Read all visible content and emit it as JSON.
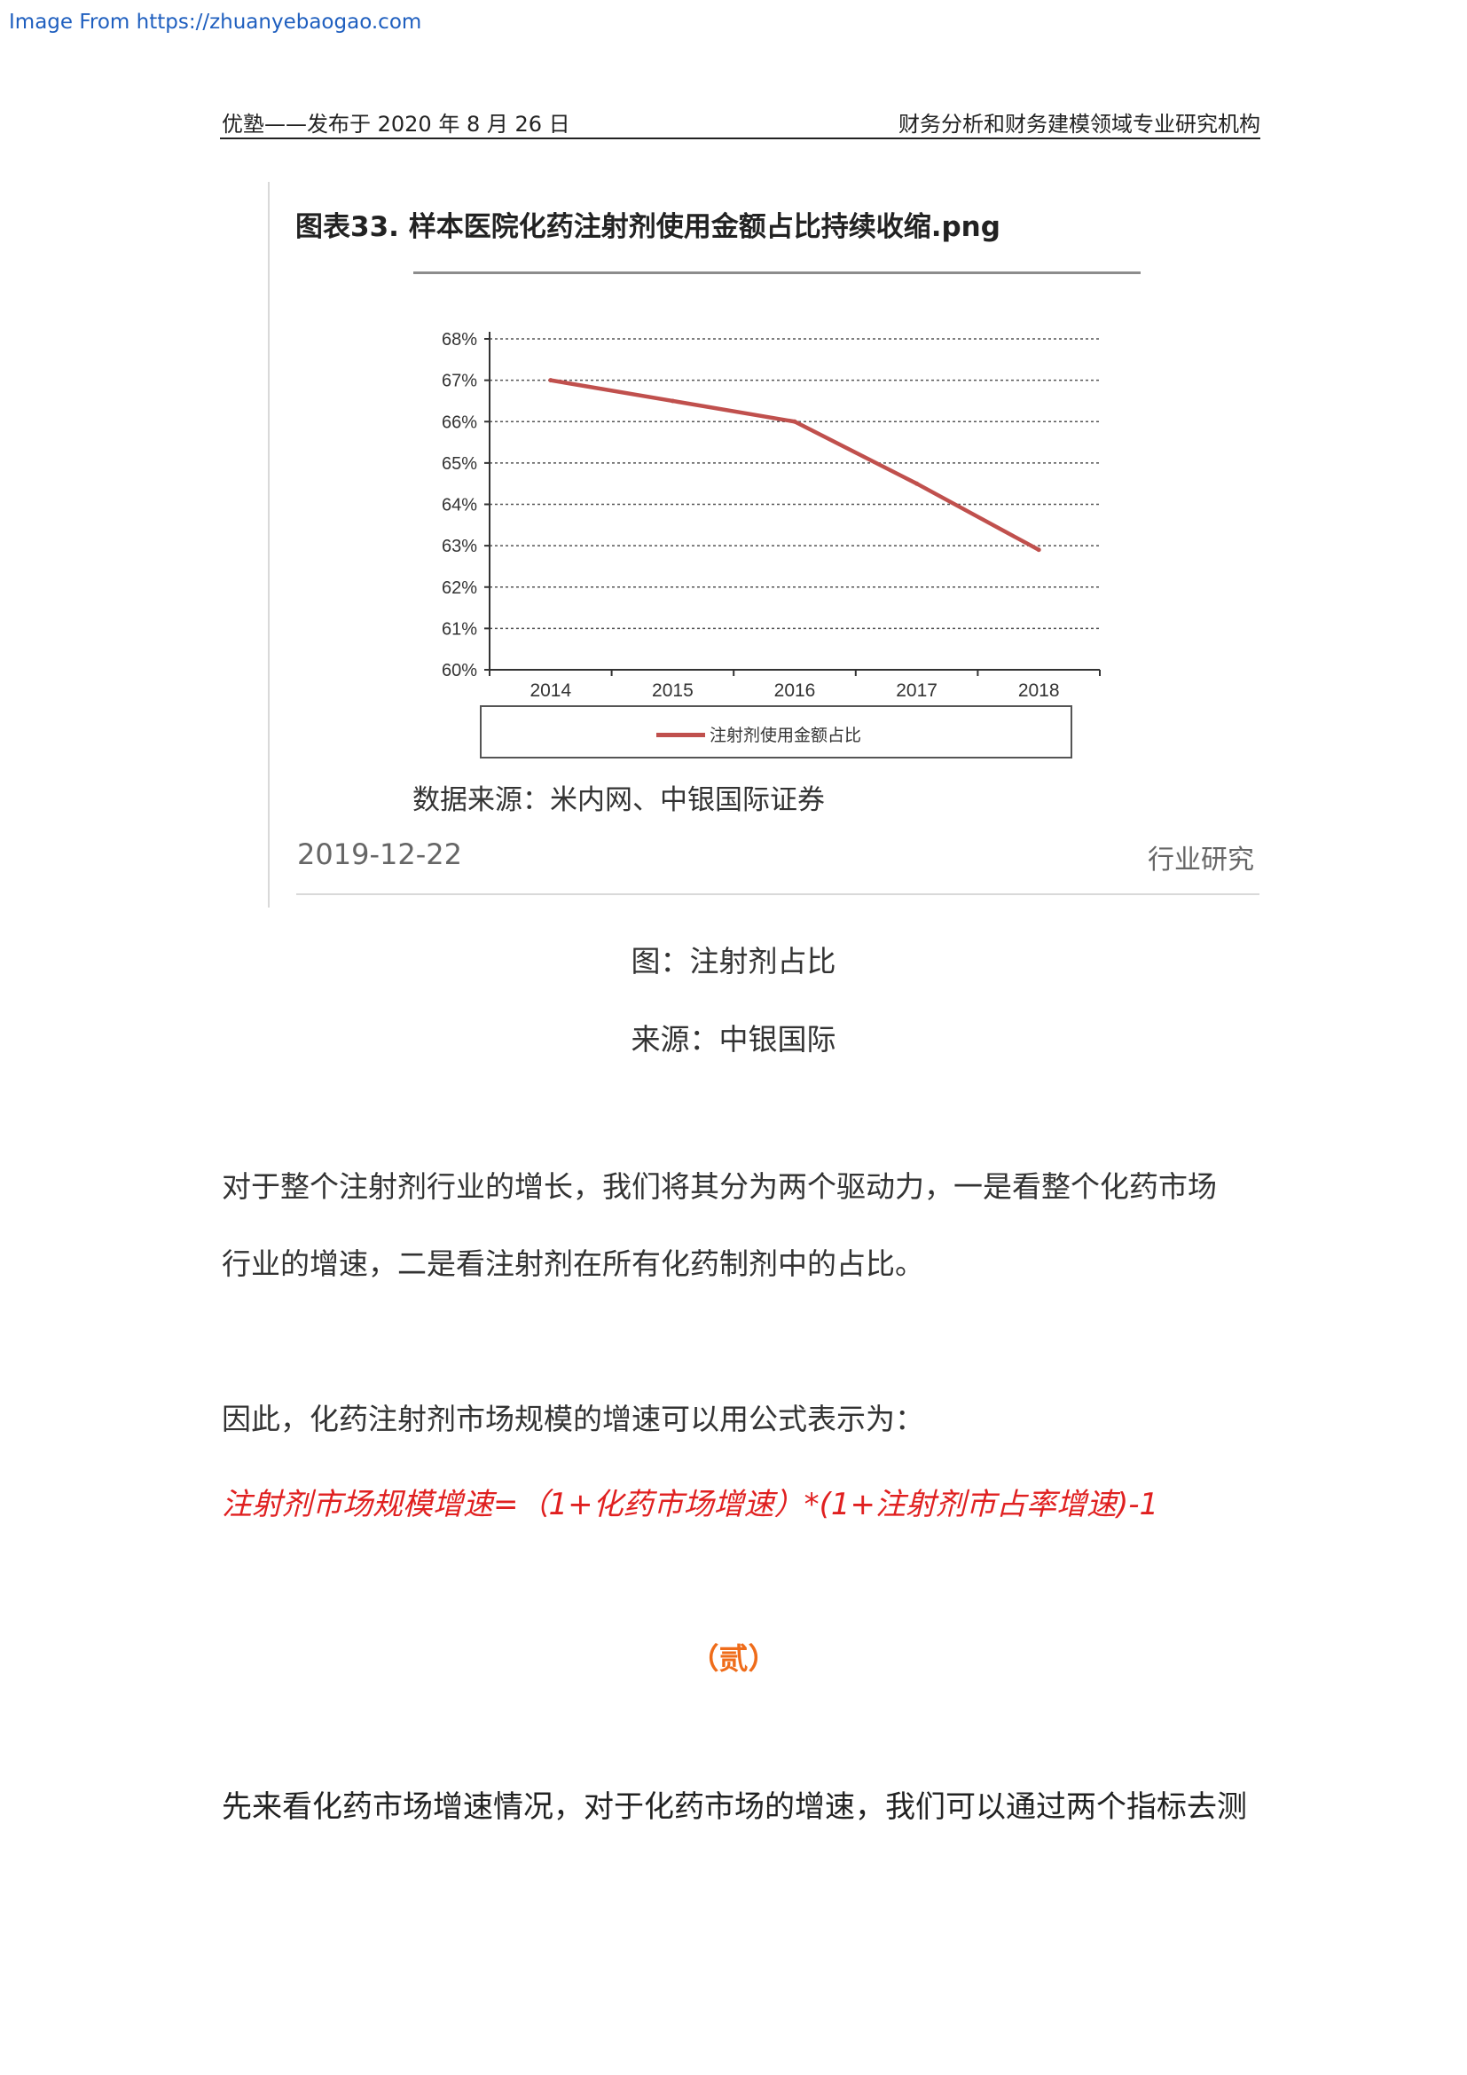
{
  "watermark": "Image From https://zhuanyebaogao.com",
  "header": {
    "left": "优塾——发布于 2020 年 8 月 26 日",
    "right": "财务分析和财务建模领域专业研究机构"
  },
  "figure": {
    "title": "图表33. 样本医院化药注射剂使用金额占比持续收缩.png",
    "source_note": "数据来源：米内网、中银国际证券",
    "date": "2019-12-22",
    "tag": "行业研究"
  },
  "chart_data": {
    "type": "line",
    "title": "图表33. 样本医院化药注射剂使用金额占比持续收缩",
    "categories": [
      "2014",
      "2015",
      "2016",
      "2017",
      "2018"
    ],
    "series": [
      {
        "name": "注射剂使用金额占比",
        "values": [
          67.0,
          66.5,
          66.0,
          64.5,
          62.9
        ],
        "color": "#c0504d"
      }
    ],
    "ylim": [
      60,
      68
    ],
    "yticks": [
      "60%",
      "61%",
      "62%",
      "63%",
      "64%",
      "65%",
      "66%",
      "67%",
      "68%"
    ],
    "grid": true,
    "legend": "bottom"
  },
  "caption": "图：注射剂占比",
  "source": "来源：中银国际",
  "paragraphs": {
    "p1a": "对于整个注射剂行业的增长，我们将其分为两个驱动力，一是看整个化药市场",
    "p1b": "行业的增速，二是看注射剂在所有化药制剂中的占比。",
    "p2": "因此，化药注射剂市场规模的增速可以用公式表示为：",
    "formula": "注射剂市场规模增速=（1+化药市场增速）*(1+注射剂市占率增速)-1",
    "section": "（贰）",
    "p3": "先来看化药市场增速情况，对于化药市场的增速，我们可以通过两个指标去测"
  }
}
